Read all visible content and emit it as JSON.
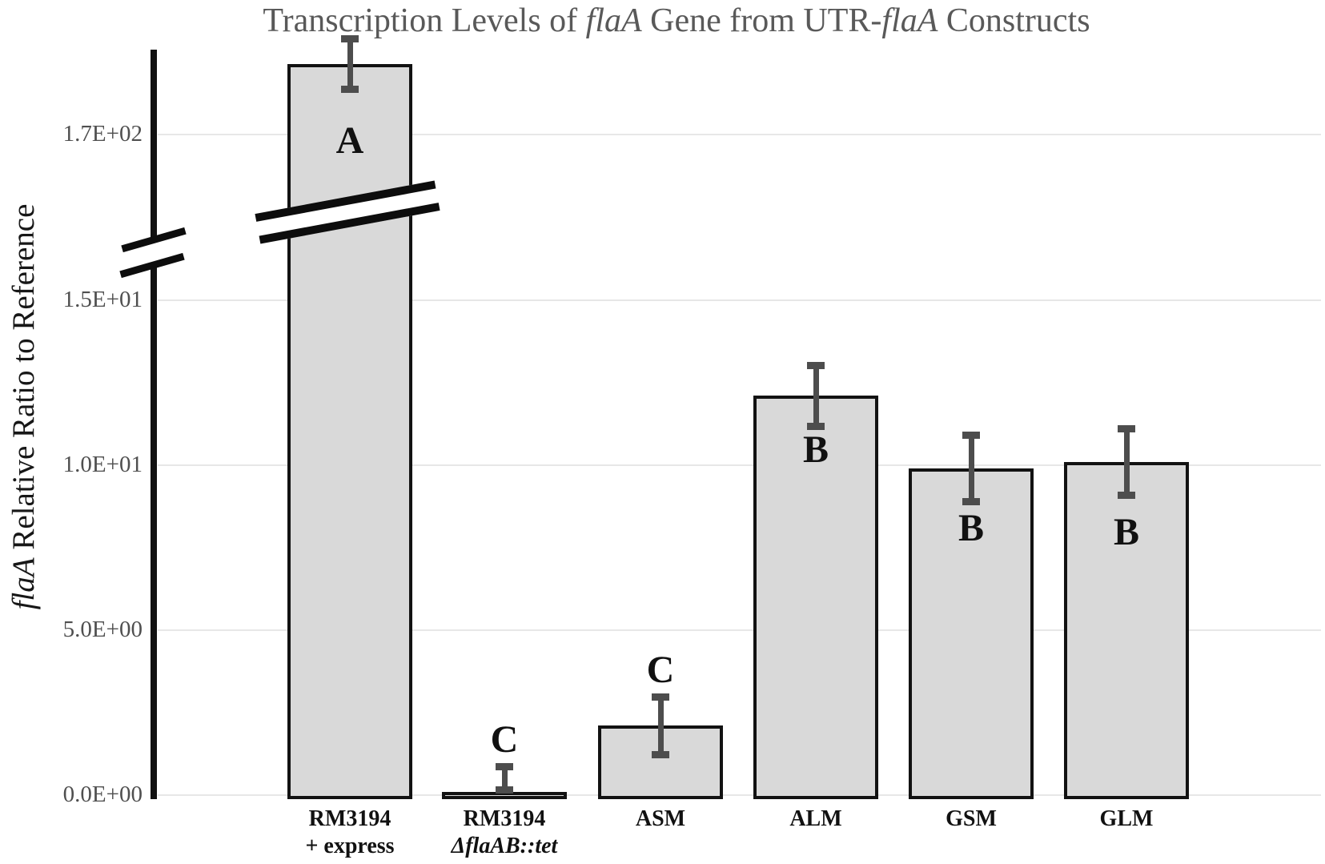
{
  "figure": {
    "title_parts": [
      {
        "text": "Transcription Levels of ",
        "italic": false
      },
      {
        "text": "flaA",
        "italic": true
      },
      {
        "text": " Gene from UTR-",
        "italic": false
      },
      {
        "text": "flaA",
        "italic": true
      },
      {
        "text": " Constructs",
        "italic": false
      }
    ],
    "ylabel_parts": [
      {
        "text": "flaA",
        "italic": true
      },
      {
        "text": " Relative Ratio to Reference",
        "italic": false
      }
    ]
  },
  "chart_data": {
    "type": "bar",
    "title": "Transcription Levels of flaA Gene from UTR-flaA Constructs",
    "ylabel": "flaA Relative Ratio to Reference",
    "xlabel": "",
    "categories": [
      "RM3194 + express",
      "RM3194 ΔflaAB::tet",
      "ASM",
      "ALM",
      "GSM",
      "GLM"
    ],
    "values": [
      180,
      0.1,
      2.1,
      12.1,
      9.9,
      10.1
    ],
    "errors": [
      4,
      0.85,
      0.95,
      1.0,
      1.1,
      1.1
    ],
    "significance_letters": [
      "A",
      "C",
      "C",
      "B",
      "B",
      "B"
    ],
    "x_tick_lines": [
      [
        {
          "text": "RM3194",
          "italic": false
        },
        {
          "text": "+ express",
          "italic": false
        }
      ],
      [
        {
          "text": "RM3194",
          "italic": false
        },
        {
          "text": "ΔflaAB::tet",
          "italic": true
        }
      ],
      [
        {
          "text": "ASM",
          "italic": false
        }
      ],
      [
        {
          "text": "ALM",
          "italic": false
        }
      ],
      [
        {
          "text": "GSM",
          "italic": false
        }
      ],
      [
        {
          "text": "GLM",
          "italic": false
        }
      ]
    ],
    "y_axis": {
      "tick_labels": [
        "0.0E+00",
        "5.0E+00",
        "1.0E+01",
        "1.5E+01",
        "1.7E+02"
      ],
      "tick_values": [
        0,
        5,
        10,
        15,
        170
      ],
      "axis_break": true,
      "axis_break_between": [
        "1.5E+01",
        "1.7E+02"
      ]
    },
    "grid": true,
    "legend": false,
    "error_bars": true,
    "colors": {
      "bar_fill": "#d9d9d9",
      "bar_border": "#121212",
      "error_bar": "#4d4d4d",
      "gridline": "#e7e7e7",
      "title_text": "#595959",
      "tick_text": "#4f4f4f",
      "label_text": "#111111"
    }
  }
}
